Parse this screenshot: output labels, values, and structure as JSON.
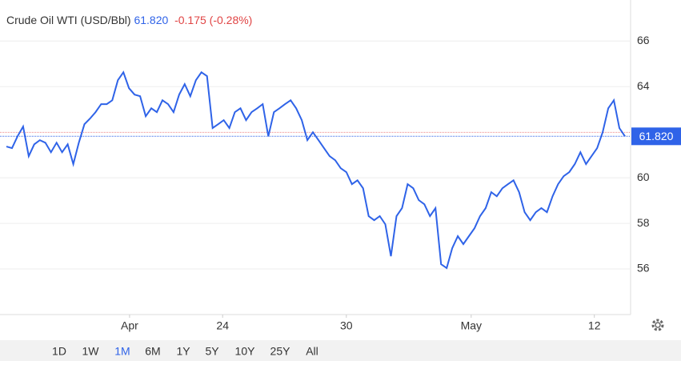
{
  "chart_data": {
    "type": "line",
    "title": "Crude Oil WTI (USD/Bbl)",
    "price": {
      "value": 61.82,
      "label": "61.820"
    },
    "change": "-0.175 (-0.28%)",
    "previous_close": 61.995,
    "color": "#2f63e8",
    "x": [
      0,
      1,
      2,
      3,
      4,
      5,
      6,
      7,
      8,
      9,
      10,
      11,
      12,
      13,
      14,
      15,
      16,
      17,
      18,
      19,
      20,
      21,
      22,
      23,
      24,
      25,
      26,
      27,
      28,
      29,
      30,
      31,
      32,
      33,
      34,
      35,
      36,
      37,
      38,
      39,
      40,
      41,
      42,
      43,
      44,
      45,
      46,
      47,
      48,
      49,
      50,
      51,
      52,
      53,
      54,
      55,
      56,
      57,
      58,
      59,
      60,
      61,
      62,
      63,
      64,
      65,
      66,
      67,
      68,
      69,
      70,
      71,
      72,
      73,
      74,
      75,
      76,
      77,
      78,
      79,
      80,
      81,
      82,
      83,
      84,
      85,
      86,
      87,
      88,
      89,
      90,
      91,
      92,
      93,
      94,
      95,
      96,
      97,
      98,
      99,
      100,
      101,
      102,
      103,
      104,
      105,
      106,
      107,
      108,
      109,
      110,
      111
    ],
    "values": [
      61.37,
      61.3,
      61.82,
      62.25,
      60.95,
      61.47,
      61.65,
      61.54,
      61.12,
      61.54,
      61.12,
      61.47,
      60.6,
      61.54,
      62.35,
      62.6,
      62.88,
      63.23,
      63.23,
      63.4,
      64.28,
      64.63,
      63.93,
      63.65,
      63.58,
      62.7,
      63.05,
      62.88,
      63.4,
      63.23,
      62.88,
      63.65,
      64.11,
      63.58,
      64.28,
      64.63,
      64.46,
      62.18,
      62.35,
      62.53,
      62.18,
      62.88,
      63.05,
      62.53,
      62.88,
      63.05,
      63.23,
      61.82,
      62.88,
      63.05,
      63.23,
      63.4,
      63.05,
      62.53,
      61.65,
      62.0,
      61.65,
      61.3,
      60.95,
      60.77,
      60.42,
      60.25,
      59.72,
      59.89,
      59.54,
      58.32,
      58.14,
      58.32,
      57.96,
      56.56,
      58.32,
      58.67,
      59.72,
      59.54,
      59.02,
      58.84,
      58.32,
      58.67,
      56.21,
      56.04,
      56.91,
      57.44,
      57.09,
      57.44,
      57.79,
      58.32,
      58.67,
      59.37,
      59.19,
      59.54,
      59.72,
      59.89,
      59.37,
      58.49,
      58.14,
      58.49,
      58.67,
      58.49,
      59.19,
      59.72,
      60.07,
      60.25,
      60.6,
      61.12,
      60.6,
      60.95,
      61.3,
      62.0,
      63.05,
      63.4,
      62.18,
      61.82
    ],
    "xlim": [
      0,
      111
    ],
    "xticks": [
      {
        "value": 22.1,
        "label": "Apr"
      },
      {
        "value": 38.8,
        "label": "24"
      },
      {
        "value": 61.0,
        "label": "30"
      },
      {
        "value": 83.4,
        "label": "May"
      },
      {
        "value": 105.5,
        "label": "12"
      }
    ],
    "ylim": [
      54,
      67.8
    ],
    "yticks": [
      56,
      58,
      60,
      64,
      66
    ],
    "grid": true,
    "ranges": [
      "1D",
      "1W",
      "1M",
      "6M",
      "1Y",
      "5Y",
      "10Y",
      "25Y",
      "All"
    ],
    "selected_range": 2
  }
}
